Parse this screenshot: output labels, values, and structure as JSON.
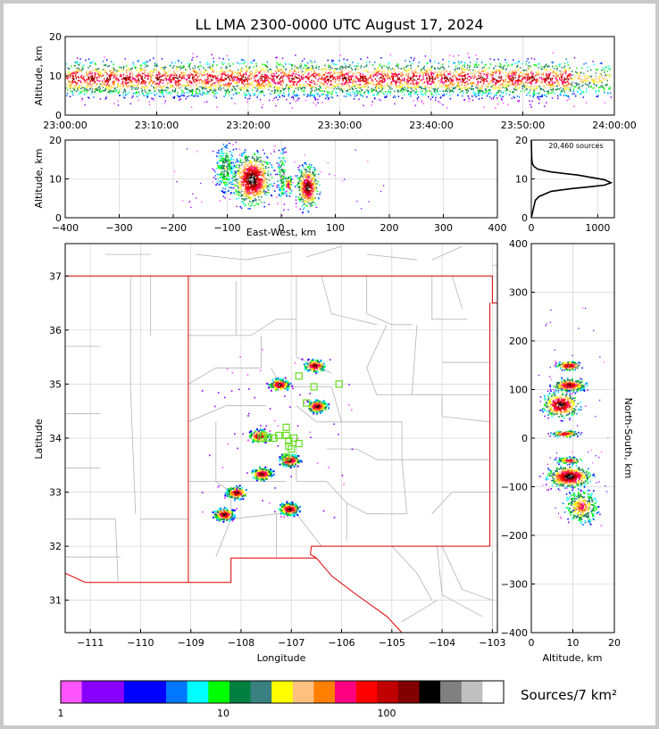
{
  "title": "LL LMA 2300-0000 UTC August 17, 2024",
  "colors": {
    "state_border": "#e00000",
    "county_border": "#b4b4b4",
    "grid": "#d9d9d9",
    "station": "#66dd22",
    "frame": "#c9c9c9"
  },
  "panels": {
    "time_height": {
      "ylabel": "Altitude, km",
      "yticks": [
        "0",
        "10",
        "20"
      ],
      "xticks": [
        "23:00:00",
        "23:10:00",
        "23:20:00",
        "23:30:00",
        "23:40:00",
        "23:50:00",
        "24:00:00"
      ]
    },
    "ew_height": {
      "ylabel": "Altitude, km",
      "xlabel": "East-West, km",
      "yticks": [
        "0",
        "10",
        "20"
      ],
      "xticks": [
        "−400",
        "−300",
        "−200",
        "−100",
        "0",
        "100",
        "200",
        "300",
        "400"
      ]
    },
    "histogram": {
      "annotation": "20,460 sources",
      "yticks": [
        "0",
        "10",
        "20"
      ],
      "xticks": [
        "0",
        "1000"
      ]
    },
    "map": {
      "xlabel": "Longitude",
      "ylabel": "Latitude",
      "xticks": [
        "−111",
        "−110",
        "−109",
        "−108",
        "−107",
        "−106",
        "−105",
        "−104",
        "−103"
      ],
      "yticks": [
        "37",
        "36",
        "35",
        "34",
        "33",
        "32",
        "31"
      ]
    },
    "ns_altitude": {
      "xlabel": "Altitude, km",
      "ylabel": "North-South, km",
      "xticks": [
        "0",
        "10",
        "20"
      ],
      "yticks": [
        "400",
        "300",
        "200",
        "100",
        "0",
        "−100",
        "−200",
        "−300",
        "−400"
      ]
    }
  },
  "colorbar": {
    "label": "Sources/7 km²",
    "ticks": [
      "1",
      "10",
      "100"
    ],
    "colors": [
      "#ff55ff",
      "#8800ff",
      "#0000ff",
      "#0077ff",
      "#00ffff",
      "#00ff00",
      "#008040",
      "#3a8080",
      "#ffff00",
      "#ffc080",
      "#ff8000",
      "#ff0080",
      "#ff0000",
      "#c00000",
      "#800000",
      "#000000",
      "#808080",
      "#c0c0c0",
      "#ffffff"
    ]
  },
  "chart_data": [
    {
      "type": "scatter",
      "title": "LL LMA 2300-0000 UTC August 17, 2024",
      "xlabel": "",
      "ylabel": "Altitude, km",
      "xlim": [
        "23:00:00",
        "24:00:00"
      ],
      "ylim": [
        0,
        20
      ],
      "description_series": [
        {
          "name": "",
          "x_range": [
            "23:00:00",
            "23:59:30"
          ],
          "altitude_core_km": [
            5,
            13
          ]
        }
      ]
    },
    {
      "type": "scatter",
      "xlabel": "East-West, km",
      "ylabel": "Altitude, km",
      "xlim": [
        -400,
        400
      ],
      "ylim": [
        0,
        20
      ],
      "clusters": [
        {
          "x_km": -105,
          "altitude_km": 13
        },
        {
          "x_km": -55,
          "altitude_km": 10
        },
        {
          "x_km": 0,
          "altitude_km": 12
        },
        {
          "x_km": 45,
          "altitude_km": 8
        }
      ]
    },
    {
      "type": "line",
      "annotation": "20,460 sources",
      "xlim": [
        0,
        1250
      ],
      "ylim": [
        0,
        20
      ],
      "x": [
        0,
        60,
        120,
        300,
        600,
        900,
        1100,
        1200,
        1100,
        700,
        300,
        100,
        40,
        15,
        8,
        5,
        3,
        0
      ],
      "y": [
        0,
        4.5,
        5.5,
        6.8,
        7.5,
        8,
        8.4,
        9,
        9.8,
        11,
        11.8,
        12.5,
        13.2,
        14,
        15,
        16,
        18,
        20
      ]
    },
    {
      "type": "scatter",
      "xlabel": "Longitude",
      "ylabel": "Latitude",
      "xlim": [
        -111.5,
        -102.9
      ],
      "ylim": [
        30.4,
        37.6
      ],
      "clusters": [
        {
          "lon": -106.55,
          "lat": 35.35
        },
        {
          "lon": -107.25,
          "lat": 35.0
        },
        {
          "lon": -106.5,
          "lat": 34.6
        },
        {
          "lon": -107.65,
          "lat": 34.05
        },
        {
          "lon": -107.6,
          "lat": 33.35
        },
        {
          "lon": -107.05,
          "lat": 33.6
        },
        {
          "lon": -108.1,
          "lat": 33.0
        },
        {
          "lon": -108.35,
          "lat": 32.6
        },
        {
          "lon": -107.05,
          "lat": 32.7
        }
      ]
    },
    {
      "type": "scatter",
      "xlabel": "Altitude, km",
      "ylabel": "North-South, km",
      "xlim": [
        0,
        20
      ],
      "ylim": [
        -400,
        400
      ],
      "clusters": [
        {
          "altitude_km": 9,
          "y_km": 150
        },
        {
          "altitude_km": 9,
          "y_km": 110
        },
        {
          "altitude_km": 7,
          "y_km": 70
        },
        {
          "altitude_km": 8,
          "y_km": 10
        },
        {
          "altitude_km": 9,
          "y_km": -45
        },
        {
          "altitude_km": 9,
          "y_km": -75
        },
        {
          "altitude_km": 12,
          "y_km": -140
        }
      ]
    }
  ]
}
